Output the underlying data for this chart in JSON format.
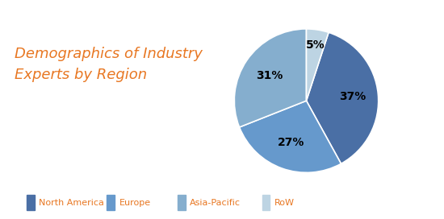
{
  "title_line1": "Demographics of Industry",
  "title_line2": "Experts by Region",
  "title_color": "#E87722",
  "title_fontsize": 13,
  "slices": [
    37,
    27,
    31,
    5
  ],
  "labels": [
    "North America",
    "Europe",
    "Asia-Pacific",
    "RoW"
  ],
  "pct_labels": [
    "37%",
    "27%",
    "31%",
    "5%"
  ],
  "colors": [
    "#4A6FA5",
    "#6699CC",
    "#85AECE",
    "#BDD4E3"
  ],
  "legend_text_color": "#E87722",
  "background_color": "#FFFFFF",
  "border_color": "#4A6FA5",
  "startangle": 72,
  "pct_fontsize": 10
}
